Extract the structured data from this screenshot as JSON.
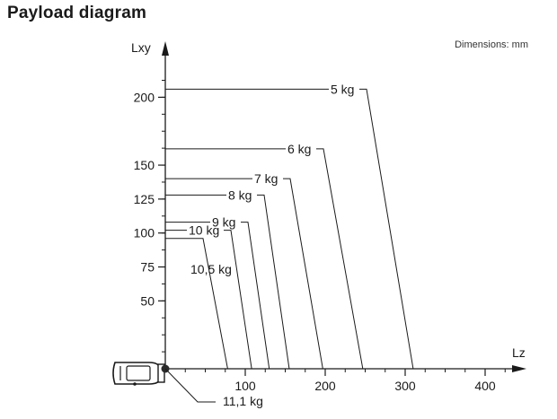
{
  "title": "Payload diagram",
  "dimensions_note": "Dimensions: mm",
  "chart_data": {
    "type": "line",
    "x_axis": {
      "label": "Lz",
      "ticks": [
        100,
        200,
        300,
        400
      ],
      "range": [
        0,
        450
      ]
    },
    "y_axis": {
      "label": "Lxy",
      "ticks": [
        50,
        75,
        100,
        125,
        150,
        200
      ],
      "range": [
        0,
        230
      ]
    },
    "curves": [
      {
        "label": "5 kg",
        "lxy": 206,
        "lz": 310
      },
      {
        "label": "6 kg",
        "lxy": 162,
        "lz": 247
      },
      {
        "label": "7 kg",
        "lxy": 140,
        "lz": 197
      },
      {
        "label": "8 kg",
        "lxy": 128,
        "lz": 155
      },
      {
        "label": "9 kg",
        "lxy": 108,
        "lz": 130
      },
      {
        "label": "10 kg",
        "lxy": 102,
        "lz": 108
      },
      {
        "label": "10,5 kg",
        "lxy": 96,
        "lz": 78
      }
    ],
    "origin_label": "11,1 kg",
    "colors": {
      "line": "#1a1a1a",
      "marker": "#2a2a2a"
    }
  }
}
